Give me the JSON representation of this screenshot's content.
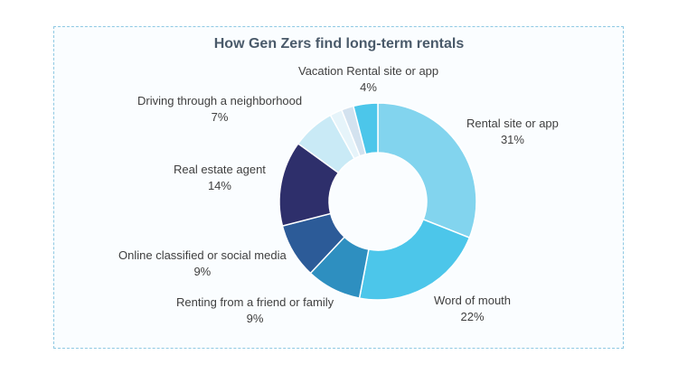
{
  "chart_data": {
    "type": "pie",
    "variant": "donut",
    "title": "How Gen Zers  find long-term rentals",
    "slices": [
      {
        "label": "Rental site or app",
        "value": 31,
        "display": "31%",
        "color": "#82d4ee"
      },
      {
        "label": "Word of mouth",
        "value": 22,
        "display": "22%",
        "color": "#4cc6ea"
      },
      {
        "label": "Renting from a friend or family",
        "value": 9,
        "display": "9%",
        "color": "#2e8fc0"
      },
      {
        "label": "Online classified or social media",
        "value": 9,
        "display": "9%",
        "color": "#2c5b98"
      },
      {
        "label": "Real estate agent",
        "value": 14,
        "display": "14%",
        "color": "#2e2f6b"
      },
      {
        "label": "Driving through a neighborhood",
        "value": 7,
        "display": "7%",
        "color": "#c9eaf6"
      },
      {
        "label": "",
        "value": 2,
        "display": "",
        "color": "#e6f4fa"
      },
      {
        "label": "",
        "value": 2,
        "display": "",
        "color": "#d3e2ef"
      },
      {
        "label": "Vacation Rental site or app",
        "value": 4,
        "display": "4%",
        "color": "#4cc6ea"
      }
    ]
  }
}
